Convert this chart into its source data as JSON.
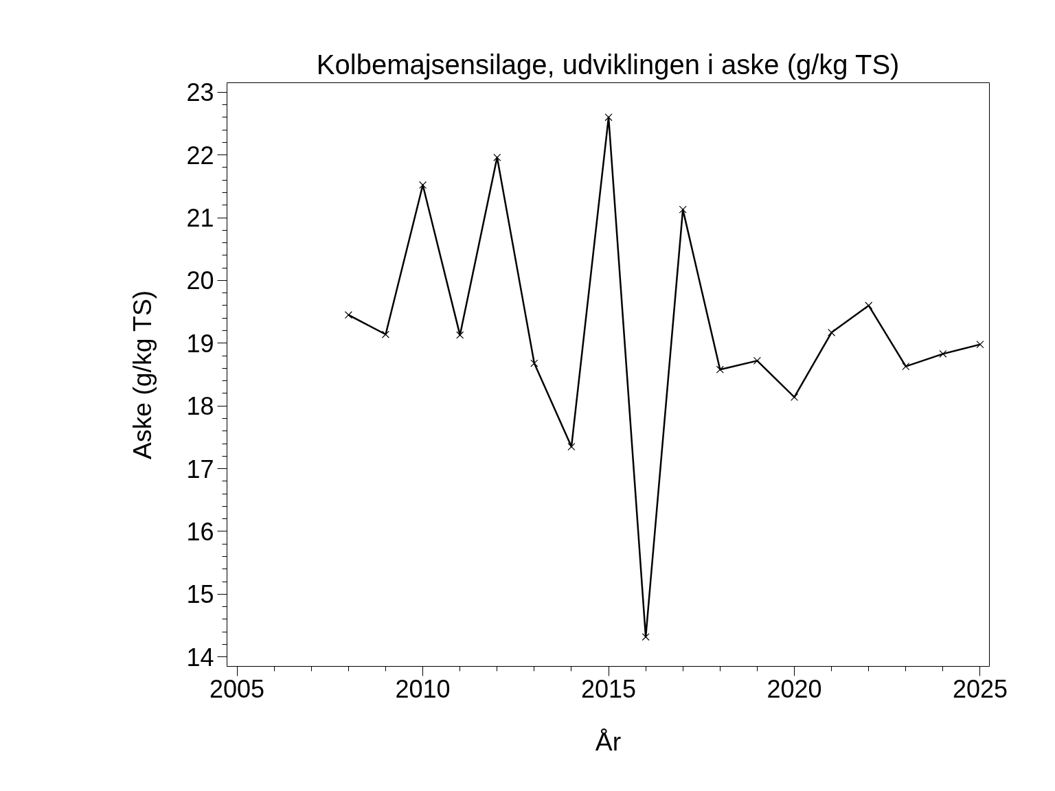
{
  "chart_data": {
    "type": "line",
    "title": "Kolbemajsensilage, udviklingen i aske (g/kg TS)",
    "xlabel": "År",
    "ylabel": "Aske (g/kg TS)",
    "x": [
      2008,
      2009,
      2010,
      2011,
      2012,
      2013,
      2014,
      2015,
      2016,
      2017,
      2018,
      2019,
      2020,
      2021,
      2022,
      2023,
      2024,
      2025
    ],
    "series": [
      {
        "color": "#000000",
        "values": [
          19.45,
          19.14,
          21.52,
          19.13,
          21.96,
          18.68,
          17.35,
          22.6,
          14.32,
          21.13,
          18.58,
          18.72,
          18.14,
          19.17,
          19.6,
          18.63,
          18.83,
          18.98
        ]
      }
    ],
    "xlim": [
      2004.73,
      2025.25
    ],
    "ylim": [
      13.85,
      23.15
    ],
    "xticks": [
      2005,
      2010,
      2015,
      2020,
      2025
    ],
    "yticks": [
      14,
      15,
      16,
      17,
      18,
      19,
      20,
      21,
      22,
      23
    ],
    "grid": false,
    "marker": "cross",
    "line_style": "solid"
  }
}
